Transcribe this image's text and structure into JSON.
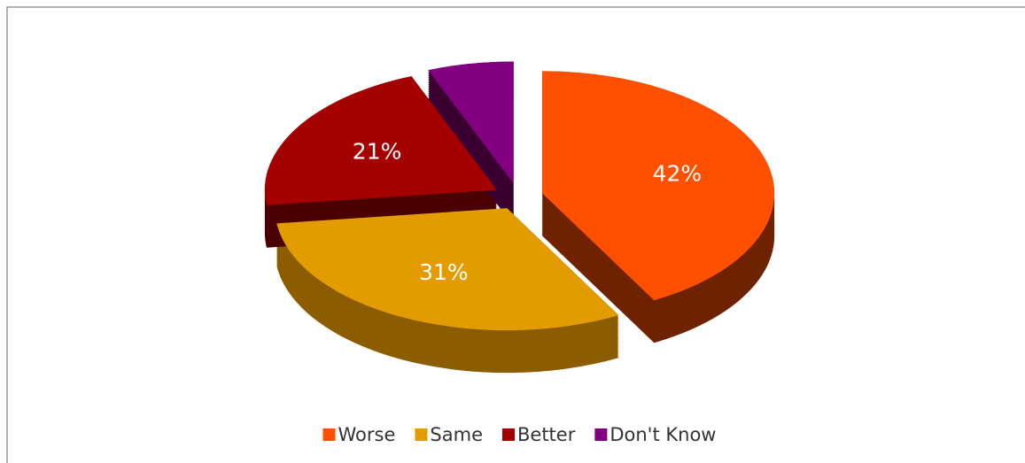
{
  "chart_data": {
    "type": "pie",
    "three_d": true,
    "exploded": true,
    "categories": [
      "Worse",
      "Same",
      "Better",
      "Don't Know"
    ],
    "values": [
      42,
      31,
      21,
      6
    ],
    "value_labels": [
      "42%",
      "31%",
      "21%",
      null
    ],
    "colors": [
      "#ff5000",
      "#e39c00",
      "#a50000",
      "#800080"
    ],
    "side_colors": [
      "#6e2200",
      "#8c5c00",
      "#4a0000",
      "#3a0030"
    ],
    "legend": "bottom"
  }
}
